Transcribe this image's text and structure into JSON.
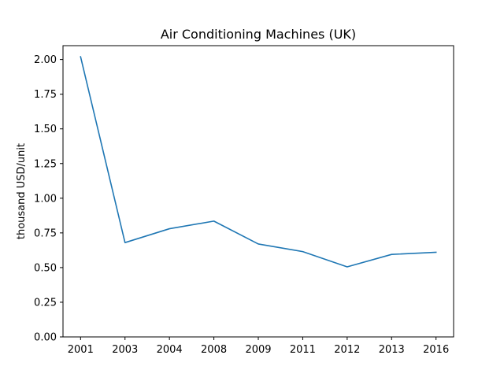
{
  "chart_data": {
    "type": "line",
    "title": "Air Conditioning Machines (UK)",
    "xlabel": "",
    "ylabel": "thousand USD/unit",
    "categories": [
      "2001",
      "2003",
      "2004",
      "2008",
      "2009",
      "2011",
      "2012",
      "2013",
      "2016"
    ],
    "series": [
      {
        "values": [
          2.02,
          0.68,
          0.78,
          0.835,
          0.67,
          0.615,
          0.505,
          0.595,
          0.61
        ]
      }
    ],
    "ylim": [
      0,
      2.1
    ],
    "yticks": [
      "0.00",
      "0.25",
      "0.50",
      "0.75",
      "1.00",
      "1.25",
      "1.50",
      "1.75",
      "2.00"
    ],
    "grid": false,
    "line_color": "#1f77b4"
  }
}
